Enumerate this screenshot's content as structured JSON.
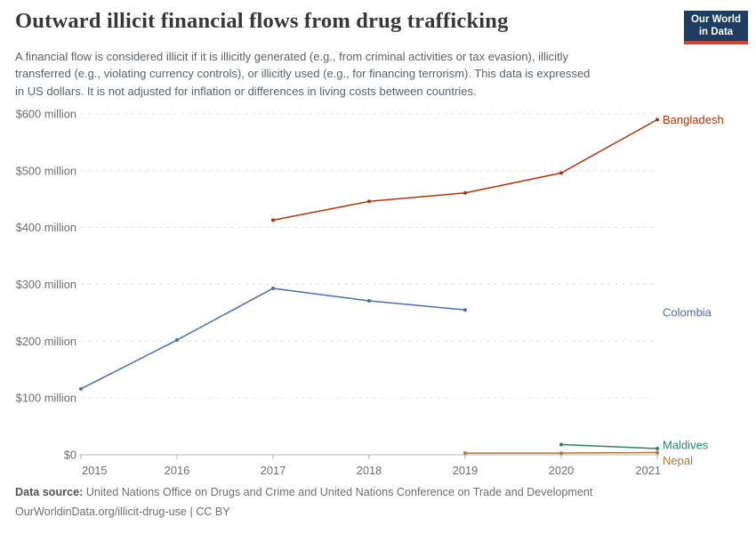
{
  "header": {
    "title": "Outward illicit financial flows from drug trafficking",
    "subtitle": "A financial flow is considered illicit if it is illicitly generated (e.g., from criminal activities or tax evasion), illicitly\ntransferred (e.g., violating currency controls), or illicitly used (e.g., for financing terrorism). This data is expressed\nin US dollars. It is not adjusted for inflation or differences in living costs between countries.",
    "logo": {
      "line1": "Our World",
      "line2": "in Data",
      "bg_color": "#1d3d63",
      "bar_color": "#ce4437"
    }
  },
  "chart_data": {
    "type": "line",
    "title": "Outward illicit financial flows from drug trafficking",
    "xlim": [
      2015,
      2021
    ],
    "ylim": [
      0,
      600
    ],
    "grid": "dashed-horizontal",
    "legend_position": "right-end-labels",
    "x_ticks": [
      {
        "value": 2015,
        "label": "2015"
      },
      {
        "value": 2016,
        "label": "2016"
      },
      {
        "value": 2017,
        "label": "2017"
      },
      {
        "value": 2018,
        "label": "2018"
      },
      {
        "value": 2019,
        "label": "2019"
      },
      {
        "value": 2020,
        "label": "2020"
      },
      {
        "value": 2021,
        "label": "2021"
      }
    ],
    "y_ticks": [
      {
        "value": 0,
        "label": "$0"
      },
      {
        "value": 100,
        "label": "$100 million"
      },
      {
        "value": 200,
        "label": "$200 million"
      },
      {
        "value": 300,
        "label": "$300 million"
      },
      {
        "value": 400,
        "label": "$400 million"
      },
      {
        "value": 500,
        "label": "$500 million"
      },
      {
        "value": 600,
        "label": "$600 million"
      }
    ],
    "unit_suffix": "million US$",
    "series": [
      {
        "name": "Bangladesh",
        "color": "#b13507",
        "label_dy": 0,
        "points": [
          [
            2017,
            413
          ],
          [
            2018,
            446
          ],
          [
            2019,
            461
          ],
          [
            2020,
            496
          ],
          [
            2021,
            590
          ]
        ]
      },
      {
        "name": "Colombia",
        "color": "#4a6fae",
        "label_dy": 3,
        "points": [
          [
            2015,
            116
          ],
          [
            2016,
            202
          ],
          [
            2017,
            293
          ],
          [
            2018,
            271
          ],
          [
            2019,
            255
          ]
        ]
      },
      {
        "name": "Maldives",
        "color": "#2c8465",
        "label_dy": -4,
        "points": [
          [
            2020,
            18
          ],
          [
            2021,
            11
          ]
        ]
      },
      {
        "name": "Nepal",
        "color": "#ae7936",
        "label_dy": 9,
        "points": [
          [
            2019,
            3
          ],
          [
            2020,
            3
          ],
          [
            2021,
            4
          ]
        ]
      }
    ],
    "axis_color": "#b3b3b3",
    "gridline_color": "#e2e2e2"
  },
  "footer": {
    "source_label": "Data source:",
    "source_text": "United Nations Office on Drugs and Crime and United Nations Conference on Trade and Development",
    "license_line": "OurWorldinData.org/illicit-drug-use | CC BY"
  }
}
